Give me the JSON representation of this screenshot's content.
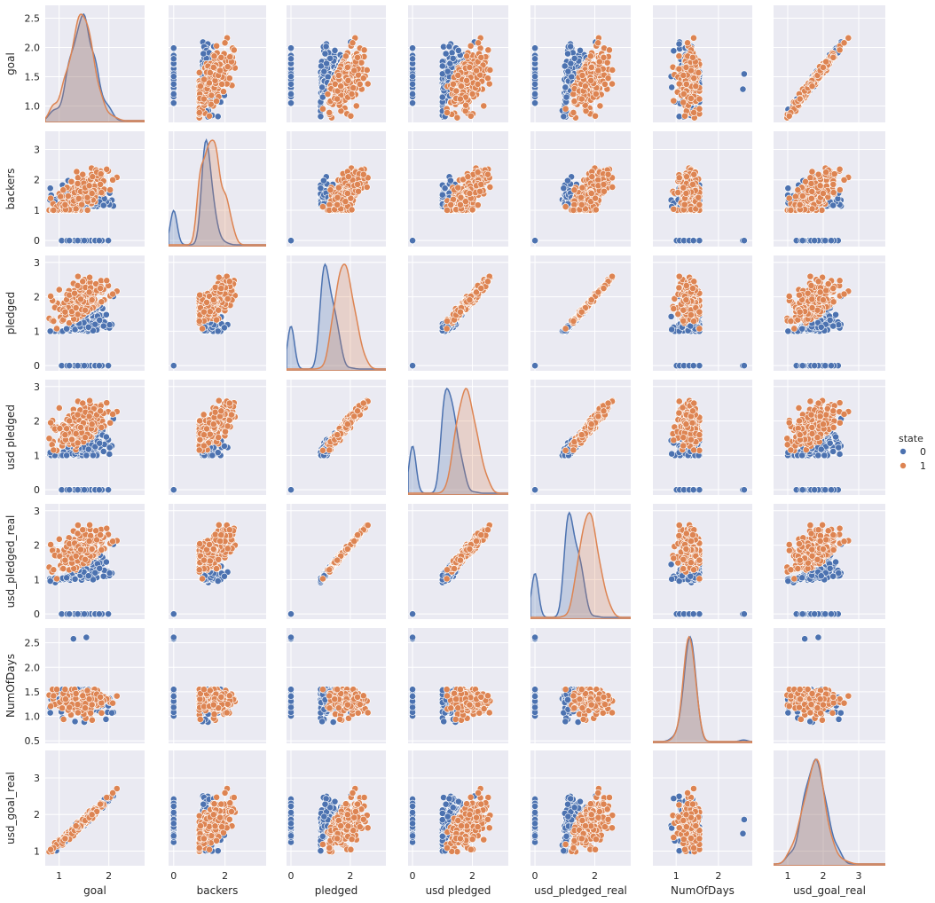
{
  "chart_data": {
    "type": "scatter",
    "variables": [
      {
        "key": "goal",
        "label": "goal",
        "range": [
          0.72,
          2.72
        ],
        "ticks": [
          1.0,
          1.5,
          2.0,
          2.5
        ],
        "tick_labels": [
          "1.0",
          "1.5",
          "2.0",
          "2.5"
        ],
        "xticks": [
          1,
          2
        ],
        "xtick_labels": [
          "1",
          "2"
        ]
      },
      {
        "key": "backers",
        "label": "backers",
        "range": [
          -0.2,
          3.6
        ],
        "ticks": [
          0,
          1,
          2,
          3
        ],
        "tick_labels": [
          "0",
          "1",
          "2",
          "3"
        ],
        "xticks": [
          0,
          2
        ],
        "xtick_labels": [
          "0",
          "2"
        ]
      },
      {
        "key": "pledged",
        "label": "pledged",
        "range": [
          -0.15,
          3.2
        ],
        "ticks": [
          0,
          1,
          2,
          3
        ],
        "tick_labels": [
          "0",
          "1",
          "2",
          "3"
        ],
        "xticks": [
          0,
          2
        ],
        "xtick_labels": [
          "0",
          "2"
        ]
      },
      {
        "key": "usd_pledged",
        "label": "usd pledged",
        "range": [
          -0.15,
          3.2
        ],
        "ticks": [
          0,
          1,
          2,
          3
        ],
        "tick_labels": [
          "0",
          "1",
          "2",
          "3"
        ],
        "xticks": [
          0,
          2
        ],
        "xtick_labels": [
          "0",
          "2"
        ]
      },
      {
        "key": "usd_pledged_real",
        "label": "usd_pledged_real",
        "range": [
          -0.15,
          3.2
        ],
        "ticks": [
          0,
          1,
          2,
          3
        ],
        "tick_labels": [
          "0",
          "1",
          "2",
          "3"
        ],
        "xticks": [
          0,
          2
        ],
        "xtick_labels": [
          "0",
          "2"
        ]
      },
      {
        "key": "NumOfDays",
        "label": "NumOfDays",
        "range": [
          0.45,
          2.8
        ],
        "ticks": [
          0.5,
          1.0,
          1.5,
          2.0,
          2.5
        ],
        "tick_labels": [
          "0.5",
          "1.0",
          "1.5",
          "2.0",
          "2.5"
        ],
        "xticks": [
          1,
          2
        ],
        "xtick_labels": [
          "1",
          "2"
        ]
      },
      {
        "key": "usd_goal_real",
        "label": "usd_goal_real",
        "range": [
          0.6,
          3.75
        ],
        "ticks": [
          1,
          2,
          3
        ],
        "tick_labels": [
          "1",
          "2",
          "3"
        ],
        "xticks": [
          1,
          2,
          3
        ],
        "xtick_labels": [
          "1",
          "2",
          "3"
        ]
      }
    ],
    "legend": {
      "title": "state",
      "entries": [
        {
          "label": "0",
          "color": "#4c72b0"
        },
        {
          "label": "1",
          "color": "#dd8452"
        }
      ],
      "placement": "center-right"
    },
    "diagonal": "kde",
    "grid": true,
    "background": "#eaeaf2",
    "colors": {
      "state_0": "#4c72b0",
      "state_1": "#dd8452"
    }
  }
}
